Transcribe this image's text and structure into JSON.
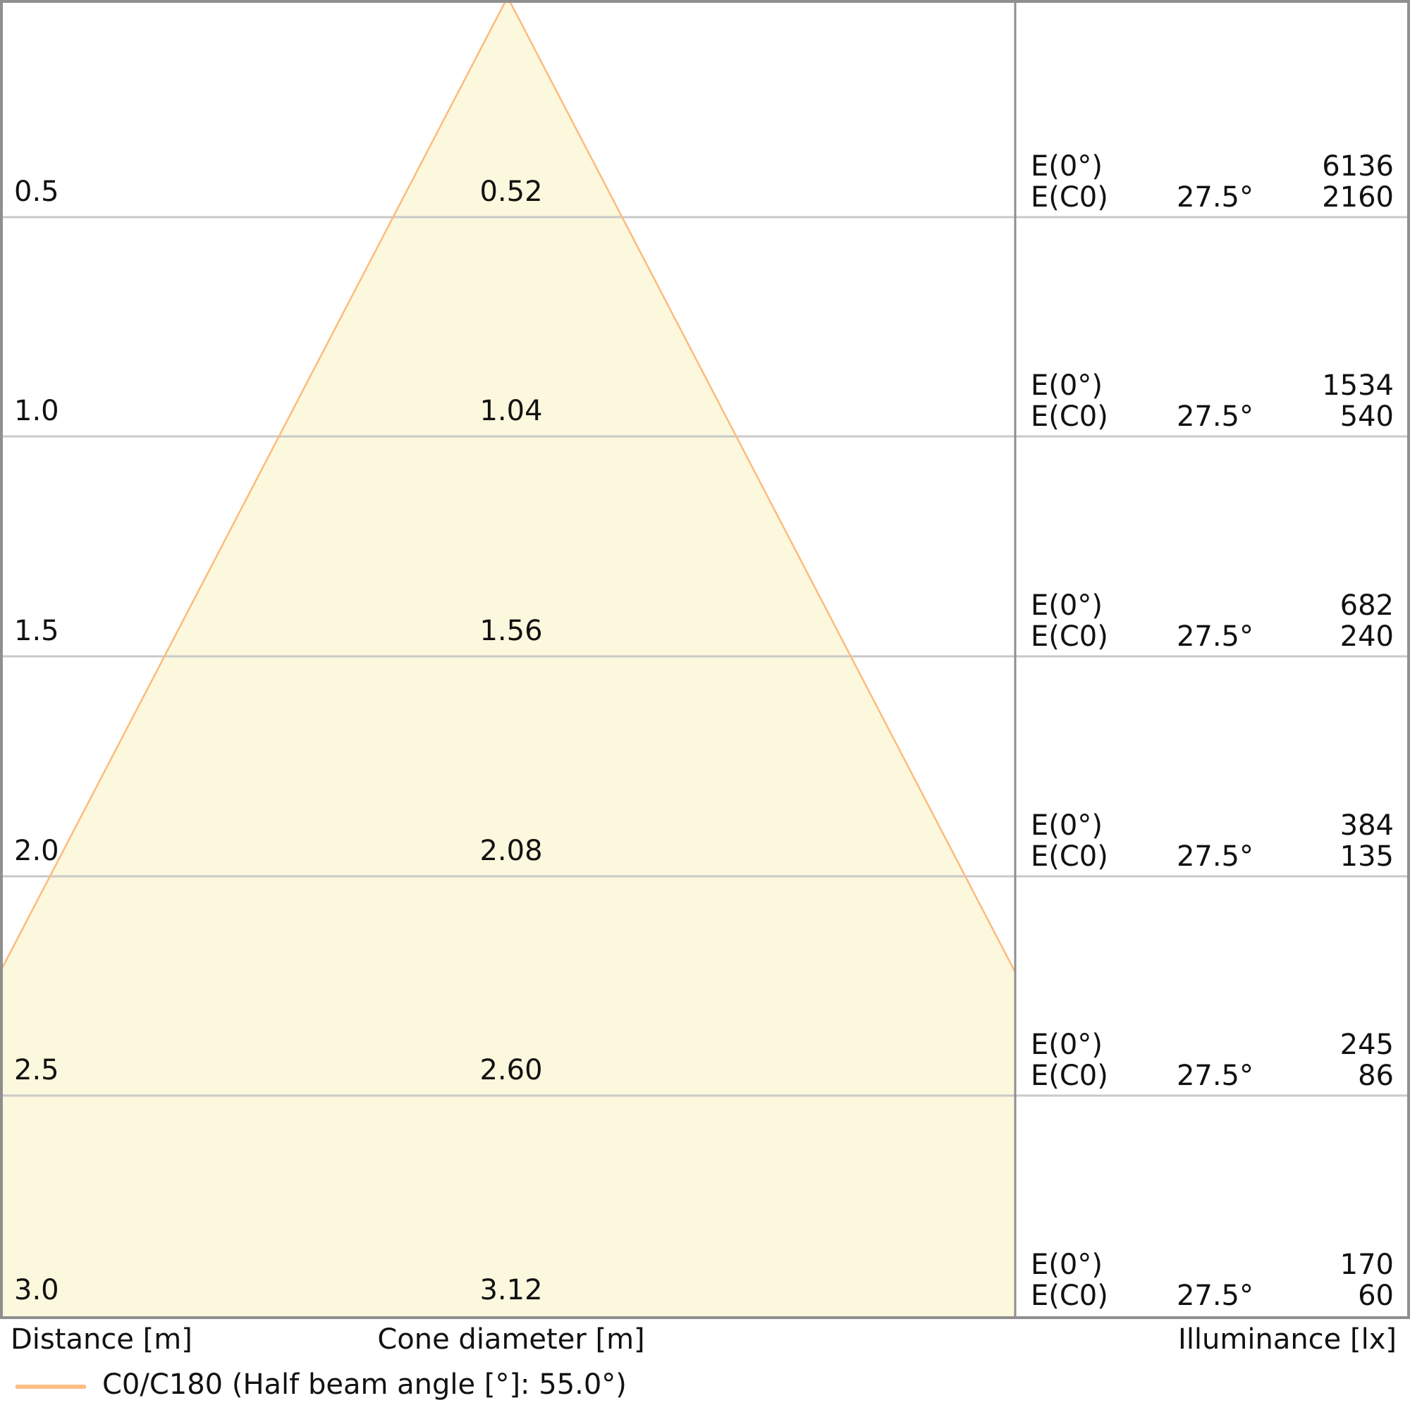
{
  "chart_data": {
    "type": "line",
    "subtype": "light-cone-diagram",
    "title": "",
    "axis_labels": {
      "left": "Distance [m]",
      "center": "Cone diameter [m]",
      "right": "Illuminance [lx]"
    },
    "legend": {
      "label": "C0/C180 (Half beam angle [°]: 55.0°)",
      "position": "bottom-left"
    },
    "half_beam_angle_full_deg": 55.0,
    "half_beam_angle_half_deg": 27.5,
    "distance_range_m": [
      0,
      3.0
    ],
    "grid": true,
    "rows": [
      {
        "distance": "0.5",
        "cone_diameter": "0.52",
        "e0_label": "E(0°)",
        "e0_value": "6136",
        "ec0_label": "E(C0)",
        "angle": "27.5°",
        "ec0_value": "2160"
      },
      {
        "distance": "1.0",
        "cone_diameter": "1.04",
        "e0_label": "E(0°)",
        "e0_value": "1534",
        "ec0_label": "E(C0)",
        "angle": "27.5°",
        "ec0_value": "540"
      },
      {
        "distance": "1.5",
        "cone_diameter": "1.56",
        "e0_label": "E(0°)",
        "e0_value": "682",
        "ec0_label": "E(C0)",
        "angle": "27.5°",
        "ec0_value": "240"
      },
      {
        "distance": "2.0",
        "cone_diameter": "2.08",
        "e0_label": "E(0°)",
        "e0_value": "384",
        "ec0_label": "E(C0)",
        "angle": "27.5°",
        "ec0_value": "135"
      },
      {
        "distance": "2.5",
        "cone_diameter": "2.60",
        "e0_label": "E(0°)",
        "e0_value": "245",
        "ec0_label": "E(C0)",
        "angle": "27.5°",
        "ec0_value": "86"
      },
      {
        "distance": "3.0",
        "cone_diameter": "3.12",
        "e0_label": "E(0°)",
        "e0_value": "170",
        "ec0_label": "E(C0)",
        "angle": "27.5°",
        "ec0_value": "60"
      }
    ],
    "colors": {
      "cone_fill": "#fcf8dd",
      "cone_edge": "#fcbb7c",
      "legend_line": "#fdbe85",
      "gridline": "#c9c9c9",
      "border": "#8f8f8f",
      "text": "#111111"
    }
  }
}
